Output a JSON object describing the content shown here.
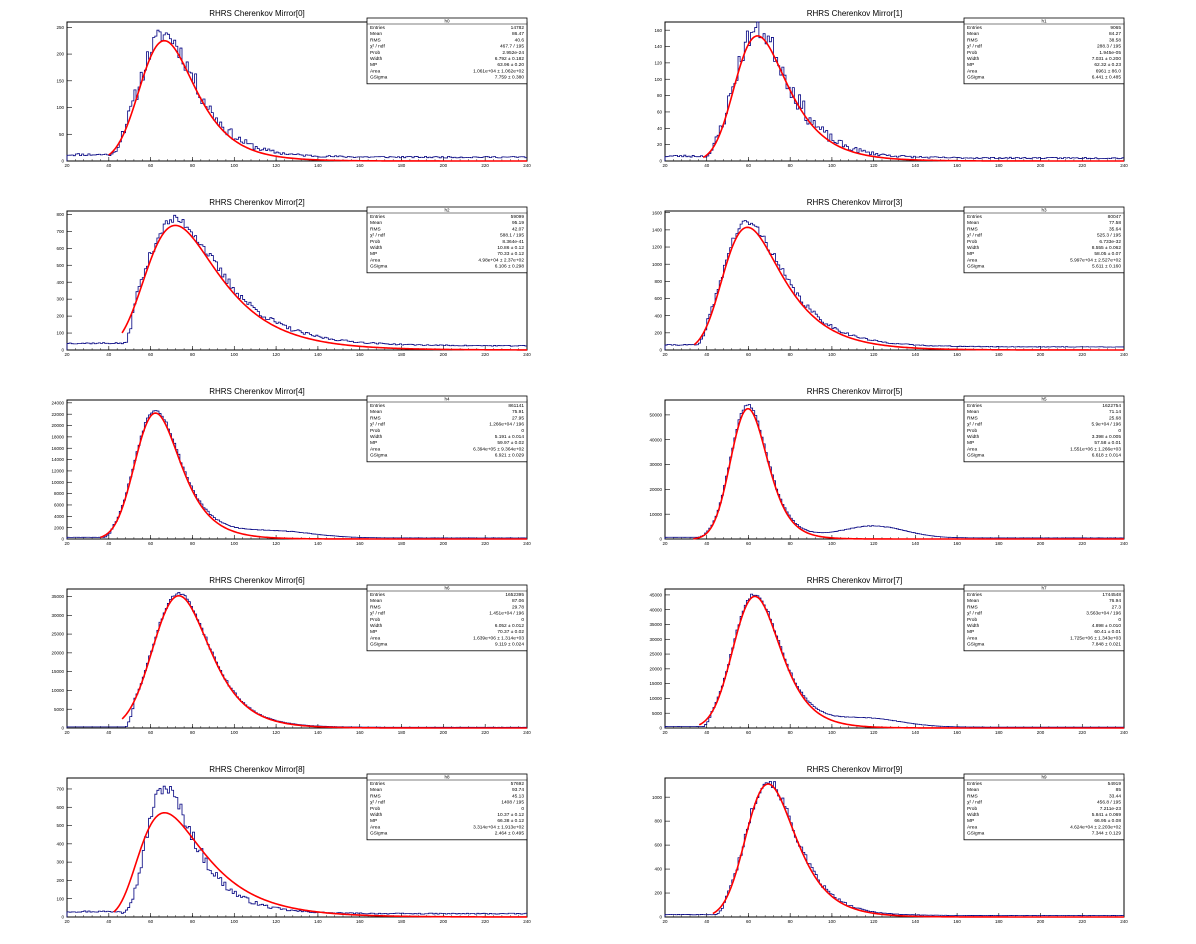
{
  "colors": {
    "histogram": "#000080",
    "fit": "#ff0000",
    "axis": "#000000",
    "background": "#ffffff"
  },
  "stat_labels": [
    "Entries",
    "Mean",
    "RMS",
    "χ² / ndf",
    "Prob",
    "Width",
    "MP",
    "Area",
    "GSigma"
  ],
  "chart_data": [
    {
      "type": "histogram",
      "title": "RHRS Cherenkov Mirror[0]",
      "xlim": [
        20,
        240
      ],
      "ylim": [
        0,
        260
      ],
      "xticks": [
        "20",
        "40",
        "60",
        "80",
        "100",
        "120",
        "140",
        "160",
        "180",
        "200",
        "220",
        "240"
      ],
      "yticks": [
        {
          "v": 0,
          "t": "0"
        },
        {
          "v": 50,
          "t": "50"
        },
        {
          "v": 100,
          "t": "100"
        },
        {
          "v": 150,
          "t": "150"
        },
        {
          "v": 200,
          "t": "200"
        },
        {
          "v": 250,
          "t": "250"
        }
      ],
      "stats": {
        "name": "h0",
        "values": [
          "14782",
          "86.47",
          "40.6",
          "467.7 / 195",
          "2.952e-24",
          "6.792 ± 0.182",
          "63.96 ± 0.20",
          "1.061e+04 ± 1.062e+02",
          "7.759 ± 0.380"
        ]
      },
      "fit": {
        "mp": 63.96,
        "width": 6.79,
        "gsigma": 7.76,
        "peak_y": 225
      },
      "hist": {
        "peak_y": 230,
        "noise": 0.07,
        "start": 20,
        "floor": 12,
        "seed": 11,
        "bump": null
      }
    },
    {
      "type": "histogram",
      "title": "RHRS Cherenkov Mirror[1]",
      "xlim": [
        20,
        240
      ],
      "ylim": [
        0,
        170
      ],
      "xticks": [
        "20",
        "40",
        "60",
        "80",
        "100",
        "120",
        "140",
        "160",
        "180",
        "200",
        "220",
        "240"
      ],
      "yticks": [
        {
          "v": 0,
          "t": "0"
        },
        {
          "v": 20,
          "t": "20"
        },
        {
          "v": 40,
          "t": "40"
        },
        {
          "v": 60,
          "t": "60"
        },
        {
          "v": 80,
          "t": "80"
        },
        {
          "v": 100,
          "t": "100"
        },
        {
          "v": 120,
          "t": "120"
        },
        {
          "v": 140,
          "t": "140"
        },
        {
          "v": 160,
          "t": "160"
        }
      ],
      "stats": {
        "name": "h1",
        "values": [
          "9065",
          "84.27",
          "38.58",
          "288.3 / 195",
          "1.945e-05",
          "7.031 ± 0.200",
          "62.32 ± 0.23",
          "6961 ± 86.0",
          "6.441 ± 0.485"
        ]
      },
      "fit": {
        "mp": 62.32,
        "width": 7.03,
        "gsigma": 6.44,
        "peak_y": 153
      },
      "hist": {
        "peak_y": 157,
        "noise": 0.08,
        "start": 20,
        "floor": 6,
        "seed": 23,
        "bump": null
      }
    },
    {
      "type": "histogram",
      "title": "RHRS Cherenkov Mirror[2]",
      "xlim": [
        20,
        240
      ],
      "ylim": [
        0,
        820
      ],
      "xticks": [
        "20",
        "40",
        "60",
        "80",
        "100",
        "120",
        "140",
        "160",
        "180",
        "200",
        "220",
        "240"
      ],
      "yticks": [
        {
          "v": 0,
          "t": "0"
        },
        {
          "v": 100,
          "t": "100"
        },
        {
          "v": 200,
          "t": "200"
        },
        {
          "v": 300,
          "t": "300"
        },
        {
          "v": 400,
          "t": "400"
        },
        {
          "v": 500,
          "t": "500"
        },
        {
          "v": 600,
          "t": "600"
        },
        {
          "v": 700,
          "t": "700"
        },
        {
          "v": 800,
          "t": "800"
        }
      ],
      "stats": {
        "name": "h2",
        "values": [
          "59099",
          "95.19",
          "42.07",
          "588.1 / 195",
          "8.364e-41",
          "10.86 ± 0.12",
          "70.33 ± 0.12",
          "4.98e+04 ± 2.37e+02",
          "6.106 ± 0.298"
        ]
      },
      "fit": {
        "mp": 70.33,
        "width": 10.86,
        "gsigma": 6.11,
        "peak_y": 735
      },
      "hist": {
        "peak_y": 745,
        "noise": 0.035,
        "start": 20,
        "floor": 40,
        "seed": 37,
        "bump": null
      }
    },
    {
      "type": "histogram",
      "title": "RHRS Cherenkov Mirror[3]",
      "xlim": [
        20,
        240
      ],
      "ylim": [
        0,
        1620
      ],
      "xticks": [
        "20",
        "40",
        "60",
        "80",
        "100",
        "120",
        "140",
        "160",
        "180",
        "200",
        "220",
        "240"
      ],
      "yticks": [
        {
          "v": 0,
          "t": "0"
        },
        {
          "v": 200,
          "t": "200"
        },
        {
          "v": 400,
          "t": "400"
        },
        {
          "v": 600,
          "t": "600"
        },
        {
          "v": 800,
          "t": "800"
        },
        {
          "v": 1000,
          "t": "1000"
        },
        {
          "v": 1200,
          "t": "1200"
        },
        {
          "v": 1400,
          "t": "1400"
        },
        {
          "v": 1600,
          "t": "1600"
        }
      ],
      "stats": {
        "name": "h3",
        "values": [
          "80047",
          "77.58",
          "35.64",
          "525.3 / 195",
          "6.733e-32",
          "8.555 ± 0.062",
          "58.05 ± 0.07",
          "5.997e+04 ± 2.527e+02",
          "5.611 ± 0.160"
        ]
      },
      "fit": {
        "mp": 58.05,
        "width": 8.56,
        "gsigma": 5.61,
        "peak_y": 1430
      },
      "hist": {
        "peak_y": 1450,
        "noise": 0.03,
        "start": 20,
        "floor": 60,
        "seed": 41,
        "bump": null
      }
    },
    {
      "type": "histogram",
      "title": "RHRS Cherenkov Mirror[4]",
      "xlim": [
        20,
        240
      ],
      "ylim": [
        0,
        24500
      ],
      "xticks": [
        "20",
        "40",
        "60",
        "80",
        "100",
        "120",
        "140",
        "160",
        "180",
        "200",
        "220",
        "240"
      ],
      "yticks": [
        {
          "v": 0,
          "t": "0"
        },
        {
          "v": 2000,
          "t": "2000"
        },
        {
          "v": 4000,
          "t": "4000"
        },
        {
          "v": 6000,
          "t": "6000"
        },
        {
          "v": 8000,
          "t": "8000"
        },
        {
          "v": 10000,
          "t": "10000"
        },
        {
          "v": 12000,
          "t": "12000"
        },
        {
          "v": 14000,
          "t": "14000"
        },
        {
          "v": 16000,
          "t": "16000"
        },
        {
          "v": 18000,
          "t": "18000"
        },
        {
          "v": 20000,
          "t": "20000"
        },
        {
          "v": 22000,
          "t": "22000"
        },
        {
          "v": 24000,
          "t": "24000"
        }
      ],
      "stats": {
        "name": "h4",
        "values": [
          "861141",
          "75.91",
          "27.95",
          "1.266e+04 / 196",
          "0",
          "5.191 ± 0.014",
          "59.97 ± 0.02",
          "6.394e+05 ± 9.364e+02",
          "6.921 ± 0.029"
        ]
      },
      "fit": {
        "mp": 59.97,
        "width": 5.19,
        "gsigma": 6.92,
        "peak_y": 22200
      },
      "hist": {
        "peak_y": 22600,
        "noise": 0.012,
        "start": 20,
        "floor": 300,
        "seed": 53,
        "bump": {
          "c": 120,
          "w": 18,
          "h": 0.05
        }
      }
    },
    {
      "type": "histogram",
      "title": "RHRS Cherenkov Mirror[5]",
      "xlim": [
        20,
        240
      ],
      "ylim": [
        0,
        56000
      ],
      "xticks": [
        "20",
        "40",
        "60",
        "80",
        "100",
        "120",
        "140",
        "160",
        "180",
        "200",
        "220",
        "240"
      ],
      "yticks": [
        {
          "v": 0,
          "t": "0"
        },
        {
          "v": 10000,
          "t": "10000"
        },
        {
          "v": 20000,
          "t": "20000"
        },
        {
          "v": 30000,
          "t": "30000"
        },
        {
          "v": 40000,
          "t": "40000"
        },
        {
          "v": 50000,
          "t": "50000"
        }
      ],
      "stats": {
        "name": "h5",
        "values": [
          "1622754",
          "71.14",
          "25.68",
          "5.9e+04 / 196",
          "0",
          "3.398 ± 0.005",
          "57.58 ± 0.01",
          "1.551e+06 ± 1.266e+03",
          "6.618 ± 0.014"
        ]
      },
      "fit": {
        "mp": 57.58,
        "width": 3.4,
        "gsigma": 6.62,
        "peak_y": 52500
      },
      "hist": {
        "peak_y": 53500,
        "noise": 0.01,
        "start": 20,
        "floor": 700,
        "seed": 61,
        "bump": {
          "c": 120,
          "w": 15,
          "h": 0.09
        }
      }
    },
    {
      "type": "histogram",
      "title": "RHRS Cherenkov Mirror[6]",
      "xlim": [
        20,
        240
      ],
      "ylim": [
        0,
        37000
      ],
      "xticks": [
        "20",
        "40",
        "60",
        "80",
        "100",
        "120",
        "140",
        "160",
        "180",
        "200",
        "220",
        "240"
      ],
      "yticks": [
        {
          "v": 0,
          "t": "0"
        },
        {
          "v": 5000,
          "t": "5000"
        },
        {
          "v": 10000,
          "t": "10000"
        },
        {
          "v": 15000,
          "t": "15000"
        },
        {
          "v": 20000,
          "t": "20000"
        },
        {
          "v": 25000,
          "t": "25000"
        },
        {
          "v": 30000,
          "t": "30000"
        },
        {
          "v": 35000,
          "t": "35000"
        }
      ],
      "stats": {
        "name": "h6",
        "values": [
          "1652395",
          "87.06",
          "29.78",
          "1.451e+04 / 196",
          "0",
          "6.052 ± 0.012",
          "70.37 ± 0.02",
          "1.639e+06 ± 1.314e+03",
          "9.119 ± 0.024"
        ]
      },
      "fit": {
        "mp": 70.37,
        "width": 6.05,
        "gsigma": 9.12,
        "peak_y": 35200
      },
      "hist": {
        "peak_y": 35600,
        "noise": 0.01,
        "start": 20,
        "floor": 300,
        "seed": 71,
        "bump": null
      }
    },
    {
      "type": "histogram",
      "title": "RHRS Cherenkov Mirror[7]",
      "xlim": [
        20,
        240
      ],
      "ylim": [
        0,
        47000
      ],
      "xticks": [
        "20",
        "40",
        "60",
        "80",
        "100",
        "120",
        "140",
        "160",
        "180",
        "200",
        "220",
        "240"
      ],
      "yticks": [
        {
          "v": 0,
          "t": "0"
        },
        {
          "v": 5000,
          "t": "5000"
        },
        {
          "v": 10000,
          "t": "10000"
        },
        {
          "v": 15000,
          "t": "15000"
        },
        {
          "v": 20000,
          "t": "20000"
        },
        {
          "v": 25000,
          "t": "25000"
        },
        {
          "v": 30000,
          "t": "30000"
        },
        {
          "v": 35000,
          "t": "35000"
        },
        {
          "v": 40000,
          "t": "40000"
        },
        {
          "v": 45000,
          "t": "45000"
        }
      ],
      "stats": {
        "name": "h7",
        "values": [
          "1744548",
          "76.94",
          "27.3",
          "3.563e+04 / 196",
          "0",
          "4.898 ± 0.010",
          "60.41 ± 0.01",
          "1.725e+06 ± 1.343e+03",
          "7.848 ± 0.021"
        ]
      },
      "fit": {
        "mp": 60.41,
        "width": 4.9,
        "gsigma": 7.85,
        "peak_y": 44500
      },
      "hist": {
        "peak_y": 45000,
        "noise": 0.01,
        "start": 20,
        "floor": 500,
        "seed": 83,
        "bump": {
          "c": 118,
          "w": 16,
          "h": 0.06
        }
      }
    },
    {
      "type": "histogram",
      "title": "RHRS Cherenkov Mirror[8]",
      "xlim": [
        20,
        240
      ],
      "ylim": [
        0,
        760
      ],
      "xticks": [
        "20",
        "40",
        "60",
        "80",
        "100",
        "120",
        "140",
        "160",
        "180",
        "200",
        "220",
        "240"
      ],
      "yticks": [
        {
          "v": 0,
          "t": "0"
        },
        {
          "v": 100,
          "t": "100"
        },
        {
          "v": 200,
          "t": "200"
        },
        {
          "v": 300,
          "t": "300"
        },
        {
          "v": 400,
          "t": "400"
        },
        {
          "v": 500,
          "t": "500"
        },
        {
          "v": 600,
          "t": "600"
        },
        {
          "v": 700,
          "t": "700"
        }
      ],
      "stats": {
        "name": "h8",
        "values": [
          "57692",
          "93.74",
          "45.13",
          "1408 / 195",
          "0",
          "10.37 ± 0.12",
          "66.38 ± 0.12",
          "3.314e+04 ± 1.913e+02",
          "2.464 ± 0.495"
        ]
      },
      "fit": {
        "mp": 66.38,
        "width": 10.37,
        "gsigma": 2.46,
        "peak_y": 570
      },
      "hist": {
        "peak_y": 690,
        "noise": 0.05,
        "start": 20,
        "floor": 30,
        "seed": 97,
        "bump": null,
        "narrow": 0.7
      }
    },
    {
      "type": "histogram",
      "title": "RHRS Cherenkov Mirror[9]",
      "xlim": [
        20,
        240
      ],
      "ylim": [
        0,
        1160
      ],
      "xticks": [
        "20",
        "40",
        "60",
        "80",
        "100",
        "120",
        "140",
        "160",
        "180",
        "200",
        "220",
        "240"
      ],
      "yticks": [
        {
          "v": 0,
          "t": "0"
        },
        {
          "v": 200,
          "t": "200"
        },
        {
          "v": 400,
          "t": "400"
        },
        {
          "v": 600,
          "t": "600"
        },
        {
          "v": 800,
          "t": "800"
        },
        {
          "v": 1000,
          "t": "1000"
        }
      ],
      "stats": {
        "name": "h9",
        "values": [
          "54919",
          "85",
          "33.44",
          "456.8 / 195",
          "7.211e-23",
          "5.841 ± 0.069",
          "66.95 ± 0.08",
          "4.624e+04 ± 2.203e+02",
          "7.344 ± 0.129"
        ]
      },
      "fit": {
        "mp": 66.95,
        "width": 5.84,
        "gsigma": 7.34,
        "peak_y": 1110
      },
      "hist": {
        "peak_y": 1120,
        "noise": 0.03,
        "start": 20,
        "floor": 20,
        "seed": 101,
        "bump": null
      }
    }
  ]
}
